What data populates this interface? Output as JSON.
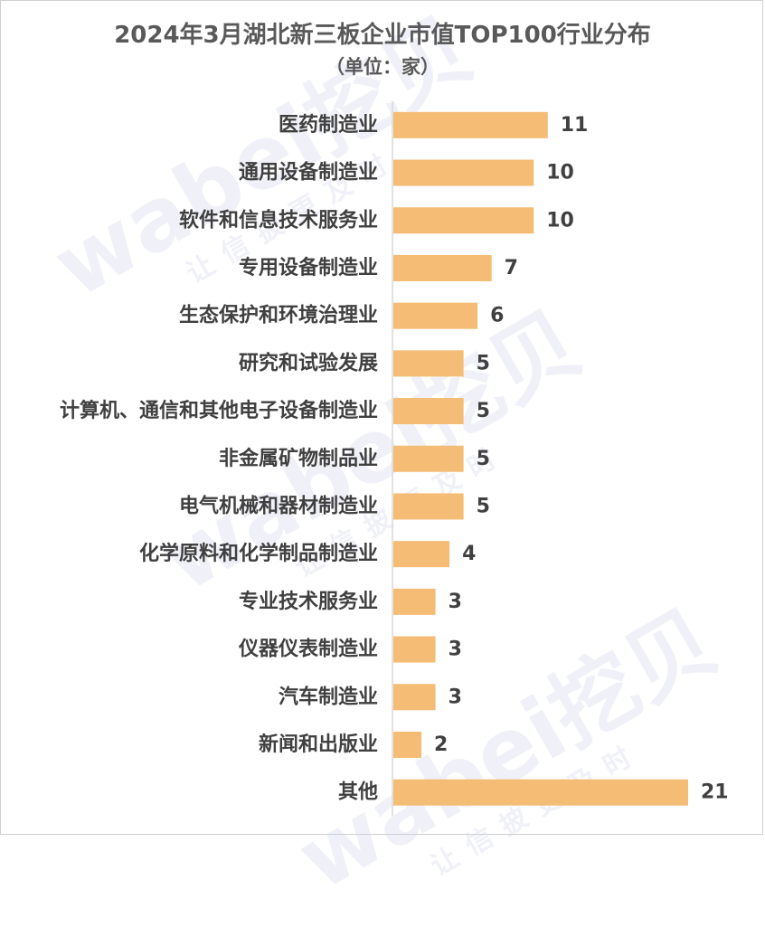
{
  "chart_data": {
    "type": "bar",
    "orientation": "horizontal",
    "title": "2024年3月湖北新三板企业市值TOP100行业分布",
    "subtitle": "（单位：家）",
    "categories": [
      "医药制造业",
      "通用设备制造业",
      "软件和信息技术服务业",
      "专用设备制造业",
      "生态保护和环境治理业",
      "研究和试验发展",
      "计算机、通信和其他电子设备制造业",
      "非金属矿物制品业",
      "电气机械和器材制造业",
      "化学原料和化学制品制造业",
      "专业技术服务业",
      "仪器仪表制造业",
      "汽车制造业",
      "新闻和出版业",
      "其他"
    ],
    "values": [
      11,
      10,
      10,
      7,
      6,
      5,
      5,
      5,
      5,
      4,
      3,
      3,
      3,
      2,
      21
    ],
    "xlim": [
      0,
      21
    ],
    "bar_color": "#f4bc74",
    "label_color": "#404040",
    "axis_color": "#d9d9d9",
    "grid": false,
    "legend": "none"
  },
  "watermark": {
    "brand": "wabei挖贝",
    "slogan": "让信披更及时"
  }
}
